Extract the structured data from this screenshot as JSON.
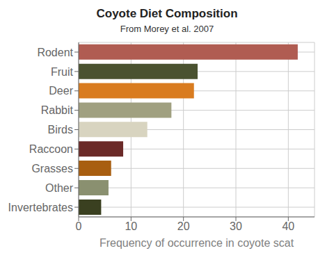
{
  "chart_data": {
    "type": "bar",
    "orientation": "horizontal",
    "title": "Coyote Diet Composition",
    "subtitle": "From Morey et al. 2007",
    "xlabel": "Frequency of occurrence in coyote scat",
    "categories": [
      "Rodent",
      "Fruit",
      "Deer",
      "Rabbit",
      "Birds",
      "Raccoon",
      "Grasses",
      "Other",
      "Invertebrates"
    ],
    "values": [
      41.8,
      22.7,
      22.0,
      17.7,
      13.1,
      8.5,
      6.2,
      5.7,
      4.3
    ],
    "colors": [
      "#b05c52",
      "#4a5230",
      "#d97c20",
      "#a0a080",
      "#d8d4c0",
      "#6b2a28",
      "#a85e10",
      "#8a9070",
      "#3a4020"
    ],
    "xlim": [
      0,
      45
    ],
    "xticks": [
      0,
      10,
      20,
      30,
      40
    ],
    "grid": true
  }
}
